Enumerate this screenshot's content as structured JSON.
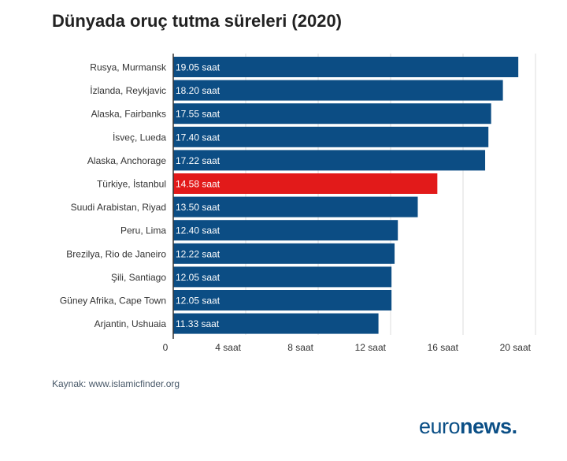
{
  "chart_data": {
    "type": "bar",
    "orientation": "horizontal",
    "title": "Dünyada oruç tutma süreleri (2020)",
    "categories": [
      "Rusya, Murmansk",
      "İzlanda, Reykjavic",
      "Alaska, Fairbanks",
      "İsveç, Lueda",
      "Alaska, Anchorage",
      "Türkiye, İstanbul",
      "Suudi Arabistan, Riyad",
      "Peru, Lima",
      "Brezilya, Rio de Janeiro",
      "Şili, Santiago",
      "Güney Afrika, Cape Town",
      "Arjantin, Ushuaia"
    ],
    "values": [
      19.05,
      18.2,
      17.55,
      17.4,
      17.22,
      14.58,
      13.5,
      12.4,
      12.22,
      12.05,
      12.05,
      11.33
    ],
    "value_labels": [
      "19.05 saat",
      "18.20 saat",
      "17.55 saat",
      "17.40 saat",
      "17.22 saat",
      "14.58 saat",
      "13.50 saat",
      "12.40 saat",
      "12.22 saat",
      "12.05 saat",
      "12.05 saat",
      "11.33 saat"
    ],
    "highlight_index": 5,
    "xlim": [
      0,
      20
    ],
    "xticks": [
      0,
      4,
      8,
      12,
      16,
      20
    ],
    "xtick_labels": [
      "0",
      "4 saat",
      "8 saat",
      "12 saat",
      "16 saat",
      "20 saat"
    ],
    "grid": true,
    "colors": {
      "bar": "#0c4d84",
      "highlight": "#e21a1a",
      "grid": "#dddddd"
    }
  },
  "source_text": "Kaynak: www.islamicfinder.org",
  "logo": {
    "light": "euro",
    "bold": "news",
    "dot": "."
  }
}
